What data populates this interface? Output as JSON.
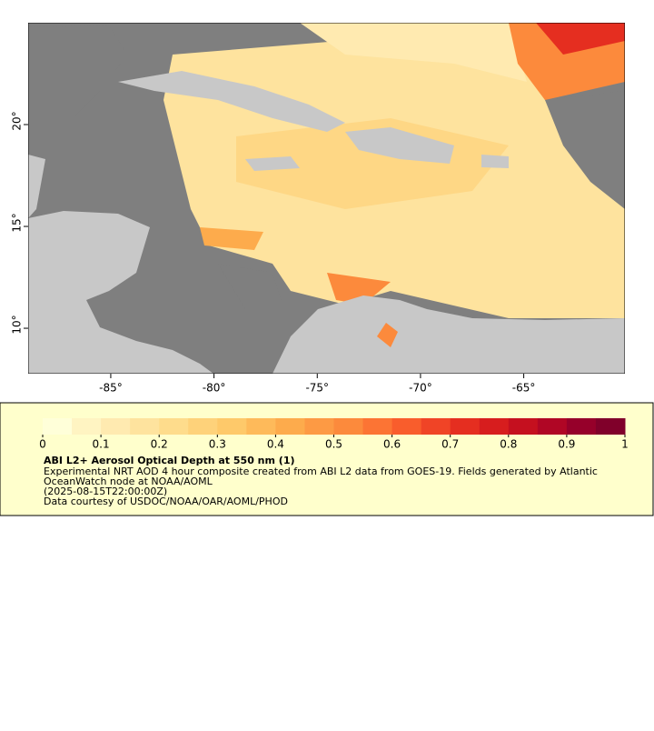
{
  "map": {
    "xlim": [
      -89.0,
      -60.1
    ],
    "ylim": [
      7.77,
      25.0
    ],
    "xticks": [
      {
        "value": -85,
        "label": "-85°"
      },
      {
        "value": -80,
        "label": "-80°"
      },
      {
        "value": -75,
        "label": "-75°"
      },
      {
        "value": -70,
        "label": "-70°"
      },
      {
        "value": -65,
        "label": "-65°"
      }
    ],
    "yticks": [
      {
        "value": 10,
        "label": "10°"
      },
      {
        "value": 15,
        "label": "15°"
      },
      {
        "value": 20,
        "label": "20°"
      }
    ]
  },
  "colorbar": {
    "clim": [
      0,
      1
    ],
    "ticks": [
      0,
      0.1,
      0.2,
      0.3,
      0.4,
      0.5,
      0.6,
      0.7,
      0.8,
      0.9,
      1
    ],
    "colors": [
      "#ffffd9",
      "#fff4c2",
      "#ffeab0",
      "#fee39e",
      "#fedc8c",
      "#fed27a",
      "#fec96a",
      "#feba5a",
      "#fdab4c",
      "#fd9a44",
      "#fc8a3c",
      "#fc7434",
      "#f95d2c",
      "#f04426",
      "#e52e20",
      "#d71d1e",
      "#c5101f",
      "#b00625",
      "#96002a",
      "#80002a"
    ]
  },
  "legend": {
    "title": "ABI L2+ Aerosol Optical Depth at 550 nm (1)",
    "lines": [
      "Experimental NRT AOD 4 hour composite created from ABI L2 data from GOES-19. Fields generated by Atlantic",
      "OceanWatch node at NOAA/AOML",
      "(2025-08-15T22:00:00Z)",
      "Data courtesy of USDOC/NOAA/OAR/AOML/PHOD"
    ]
  }
}
